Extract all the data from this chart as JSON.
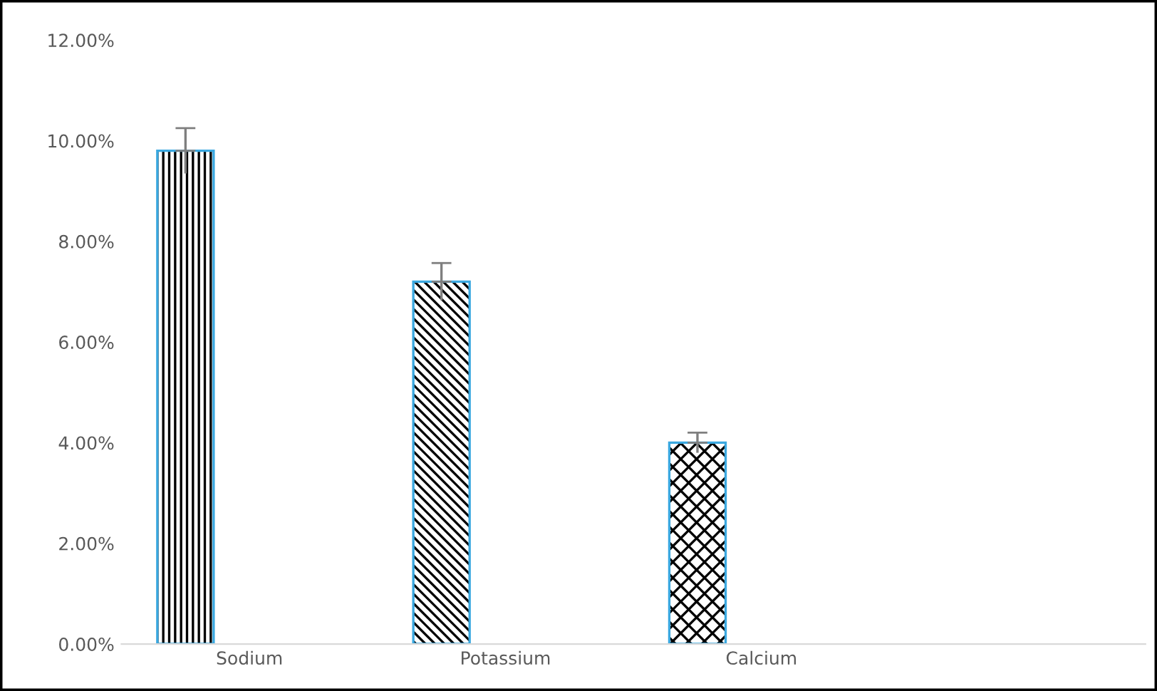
{
  "chart_data": {
    "type": "bar",
    "categories": [
      "Sodium",
      "Potassium",
      "Calcium",
      null
    ],
    "series": [
      {
        "color": "#3aa8e0",
        "values": [
          9.8,
          7.2,
          4.0,
          null
        ],
        "errors": [
          0.45,
          0.37,
          0.2,
          null
        ]
      }
    ],
    "ylim": [
      0,
      12
    ],
    "yticks": [
      {
        "value": 0,
        "label": "0.00%"
      },
      {
        "value": 2,
        "label": "2.00%"
      },
      {
        "value": 4,
        "label": "4.00%"
      },
      {
        "value": 6,
        "label": "6.00%"
      },
      {
        "value": 8,
        "label": "8.00%"
      },
      {
        "value": 10,
        "label": "10.00%"
      },
      {
        "value": 12,
        "label": "12.00%"
      }
    ],
    "grid": false
  }
}
